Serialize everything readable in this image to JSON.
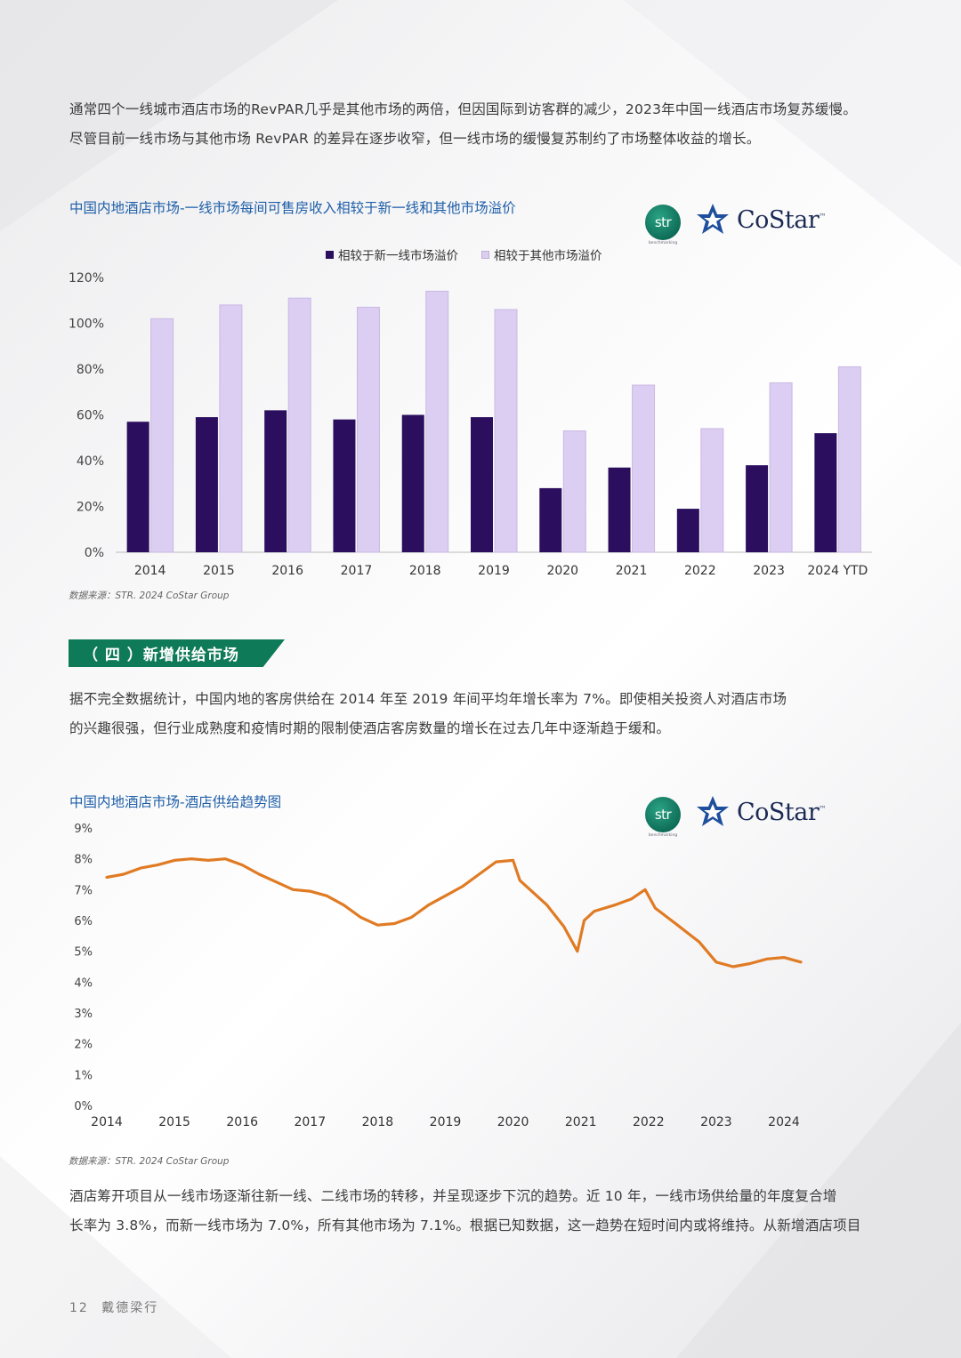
{
  "intro": {
    "line1": "通常四个一线城市酒店市场的RevPAR几乎是其他市场的两倍，但因国际到访客群的减少，2023年中国一线酒店市场复苏缓慢。",
    "line2": "尽管目前一线市场与其他市场 RevPAR 的差异在逐步收窄，但一线市场的缓慢复苏制约了市场整体收益的增长。"
  },
  "logos": {
    "str_text": "str",
    "str_sub": "benchmarking",
    "costar_text": "CoStar",
    "costar_tm": "™"
  },
  "section": {
    "banner": "（ 四 ）新增供给市场"
  },
  "section_text": {
    "line1": "据不完全数据统计，中国内地的客房供给在 2014 年至 2019 年间平均年增长率为 7%。即使相关投资人对酒店市场",
    "line2": "的兴趣很强，但行业成熟度和疫情时期的限制使酒店客房数量的增长在过去几年中逐渐趋于缓和。"
  },
  "outro": {
    "line1": "酒店筹开项目从一线市场逐渐往新一线、二线市场的转移，并呈现逐步下沉的趋势。近 10 年，一线市场供给量的年度复合增",
    "line2": "长率为 3.8%，而新一线市场为 7.0%，所有其他市场为 7.1%。根据已知数据，这一趋势在短时间内或将维持。从新增酒店项目"
  },
  "footer": {
    "page": "12",
    "brand": "戴德梁行"
  },
  "colors": {
    "dark_bar": "#2b0f5e",
    "light_bar": "#dccdf2",
    "line": "#e07b24",
    "title_blue": "#1f5fa8",
    "banner_green": "#0f7a57"
  },
  "chart_data": [
    {
      "type": "bar",
      "title": "中国内地酒店市场-一线市场每间可售房收入相较于新一线和其他市场溢价",
      "categories": [
        "2014",
        "2015",
        "2016",
        "2017",
        "2018",
        "2019",
        "2020",
        "2021",
        "2022",
        "2023",
        "2024 YTD"
      ],
      "series": [
        {
          "name": "相较于新一线市场溢价",
          "values": [
            57,
            59,
            62,
            58,
            60,
            59,
            28,
            37,
            19,
            38,
            52
          ]
        },
        {
          "name": "相较于其他市场溢价",
          "values": [
            102,
            108,
            111,
            107,
            114,
            106,
            53,
            73,
            54,
            74,
            81
          ]
        }
      ],
      "yticks": [
        "0%",
        "20%",
        "40%",
        "60%",
        "80%",
        "100%",
        "120%"
      ],
      "ylim": [
        0,
        120
      ],
      "source": "数据来源：STR. 2024 CoStar Group"
    },
    {
      "type": "line",
      "title": "中国内地酒店市场-酒店供给趋势图",
      "x": [
        2014.0,
        2014.25,
        2014.5,
        2014.75,
        2015.0,
        2015.25,
        2015.5,
        2015.75,
        2016.0,
        2016.25,
        2016.5,
        2016.75,
        2017.0,
        2017.25,
        2017.5,
        2017.75,
        2018.0,
        2018.25,
        2018.5,
        2018.75,
        2019.0,
        2019.25,
        2019.5,
        2019.75,
        2020.0,
        2020.1,
        2020.5,
        2020.75,
        2020.95,
        2021.05,
        2021.2,
        2021.5,
        2021.75,
        2021.95,
        2022.1,
        2022.4,
        2022.75,
        2023.0,
        2023.25,
        2023.5,
        2023.75,
        2024.0,
        2024.25
      ],
      "values": [
        7.4,
        7.5,
        7.7,
        7.8,
        7.95,
        8.0,
        7.95,
        8.0,
        7.8,
        7.5,
        7.25,
        7.0,
        6.95,
        6.8,
        6.5,
        6.1,
        5.85,
        5.9,
        6.1,
        6.5,
        6.8,
        7.1,
        7.5,
        7.9,
        7.95,
        7.3,
        6.5,
        5.8,
        5.0,
        6.0,
        6.3,
        6.5,
        6.7,
        7.0,
        6.4,
        5.9,
        5.3,
        4.65,
        4.5,
        4.6,
        4.75,
        4.8,
        4.65
      ],
      "xticks": [
        "2014",
        "2015",
        "2016",
        "2017",
        "2018",
        "2019",
        "2020",
        "2021",
        "2022",
        "2023",
        "2024"
      ],
      "yticks": [
        "0%",
        "1%",
        "2%",
        "3%",
        "4%",
        "5%",
        "6%",
        "7%",
        "8%",
        "9%"
      ],
      "ylim": [
        0,
        9
      ],
      "source": "数据来源：STR. 2024 CoStar Group"
    }
  ]
}
